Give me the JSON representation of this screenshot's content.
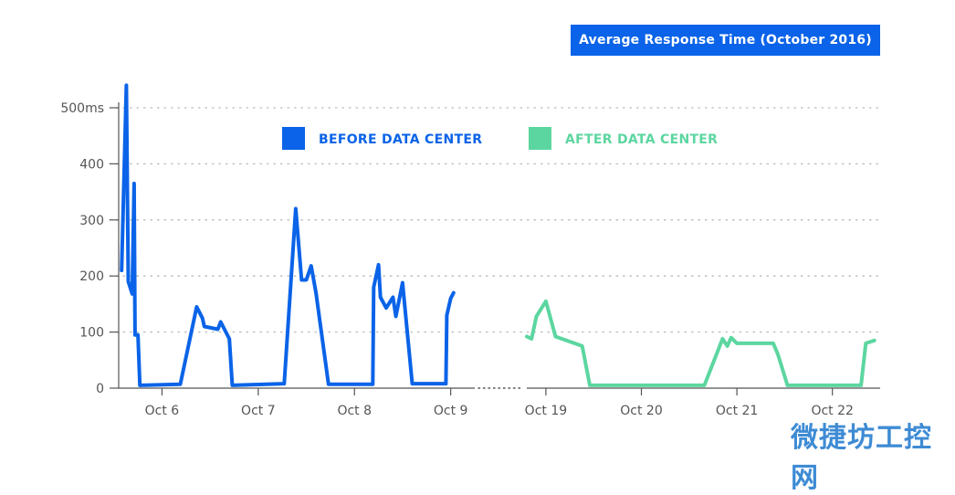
{
  "title": "Average Response Time (October 2016)",
  "watermark": "微捷坊工控网",
  "colors": {
    "before": "#0a63e8",
    "after": "#5cd6a0",
    "axis": "#555555",
    "grid": "#bbbbbb",
    "label": "#555555"
  },
  "chart_data": {
    "type": "line",
    "title": "Average Response Time (October 2016)",
    "y_unit": "ms",
    "ylim": [
      0,
      500
    ],
    "y_ticks": [
      {
        "value": 0,
        "label": "0"
      },
      {
        "value": 100,
        "label": "100"
      },
      {
        "value": 200,
        "label": "200"
      },
      {
        "value": 300,
        "label": "300"
      },
      {
        "value": 400,
        "label": "400"
      },
      {
        "value": 500,
        "label": "500ms"
      }
    ],
    "grid": "horizontal dotted",
    "legend": [
      {
        "label": "BEFORE DATA CENTER",
        "color": "#0a63e8"
      },
      {
        "label": "AFTER DATA CENTER",
        "color": "#5cd6a0"
      }
    ],
    "panels": [
      {
        "series_name": "BEFORE DATA CENTER",
        "color": "#0a63e8",
        "xlim": [
          5.55,
          9.25
        ],
        "x_ticks": [
          {
            "value": 6,
            "label": "Oct 6"
          },
          {
            "value": 7,
            "label": "Oct 7"
          },
          {
            "value": 8,
            "label": "Oct 8"
          },
          {
            "value": 9,
            "label": "Oct 9"
          }
        ],
        "x": [
          5.58,
          5.63,
          5.65,
          5.69,
          5.71,
          5.72,
          5.75,
          5.77,
          5.78,
          6.19,
          6.36,
          6.42,
          6.44,
          6.58,
          6.61,
          6.7,
          6.73,
          7.27,
          7.39,
          7.45,
          7.5,
          7.55,
          7.6,
          7.73,
          8.19,
          8.2,
          8.25,
          8.27,
          8.33,
          8.4,
          8.43,
          8.5,
          8.6,
          8.63,
          8.95,
          8.96,
          9.0,
          9.03
        ],
        "y": [
          210,
          540,
          190,
          168,
          365,
          95,
          95,
          5,
          5,
          7,
          145,
          125,
          110,
          105,
          118,
          88,
          5,
          8,
          320,
          193,
          193,
          218,
          170,
          7,
          7,
          180,
          220,
          162,
          143,
          162,
          128,
          188,
          8,
          8,
          8,
          130,
          160,
          170
        ]
      },
      {
        "series_name": "AFTER DATA CENTER",
        "color": "#5cd6a0",
        "xlim": [
          18.8,
          22.5
        ],
        "x_ticks": [
          {
            "value": 19,
            "label": "Oct 19"
          },
          {
            "value": 20,
            "label": "Oct 20"
          },
          {
            "value": 21,
            "label": "Oct 21"
          },
          {
            "value": 22,
            "label": "Oct 22"
          }
        ],
        "x": [
          18.8,
          18.85,
          18.9,
          19.0,
          19.1,
          19.38,
          19.46,
          20.66,
          20.85,
          20.9,
          20.94,
          21.0,
          21.38,
          21.43,
          21.53,
          21.85,
          22.3,
          22.35,
          22.44
        ],
        "y": [
          92,
          88,
          128,
          155,
          92,
          75,
          5,
          5,
          88,
          75,
          90,
          80,
          80,
          60,
          5,
          5,
          5,
          80,
          85
        ]
      }
    ]
  }
}
